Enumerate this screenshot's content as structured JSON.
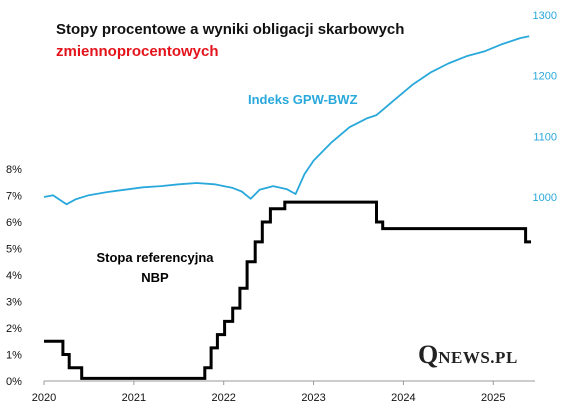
{
  "title_line1": "Stopy procentowe a wyniki obligacji skarbowych",
  "title_line2": "zmiennoprocentowych",
  "title_line2_color": "#e3141b",
  "logo": {
    "q": "Q",
    "rest": "NEWS.PL"
  },
  "chart_data": {
    "type": "line",
    "xlim": [
      2020,
      2025.42
    ],
    "x_ticks": [
      "2020",
      "2021",
      "2022",
      "2023",
      "2024",
      "2025"
    ],
    "y_left": {
      "ticks": [
        "0%",
        "1%",
        "2%",
        "3%",
        "4%",
        "5%",
        "6%",
        "7%",
        "8%"
      ],
      "ylim": [
        0,
        8
      ]
    },
    "y_right": {
      "ticks": [
        "1000",
        "1100",
        "1200",
        "1300"
      ],
      "ylim": [
        0,
        1300
      ],
      "visible_from": 1000,
      "color": "#29a8db"
    },
    "grid": false,
    "series": [
      {
        "name": "Indeks GPW-BWZ",
        "axis": "right",
        "color": "#29a8db",
        "x": [
          2020.0,
          2020.1,
          2020.15,
          2020.25,
          2020.35,
          2020.5,
          2020.7,
          2020.9,
          2021.1,
          2021.3,
          2021.5,
          2021.7,
          2021.9,
          2022.0,
          2022.1,
          2022.2,
          2022.3,
          2022.4,
          2022.55,
          2022.7,
          2022.8,
          2022.9,
          2023.0,
          2023.2,
          2023.4,
          2023.6,
          2023.7,
          2023.9,
          2024.1,
          2024.3,
          2024.5,
          2024.7,
          2024.9,
          2025.1,
          2025.3,
          2025.4
        ],
        "values": [
          1000,
          1003,
          998,
          988,
          996,
          1003,
          1008,
          1012,
          1016,
          1018,
          1021,
          1023,
          1021,
          1018,
          1015,
          1009,
          997,
          1012,
          1018,
          1013,
          1005,
          1038,
          1060,
          1090,
          1115,
          1130,
          1135,
          1160,
          1185,
          1205,
          1220,
          1232,
          1240,
          1252,
          1262,
          1265
        ]
      },
      {
        "name": "Stopa referencyjna NBP",
        "axis": "left",
        "color": "#000000",
        "step": true,
        "x": [
          2020.0,
          2020.21,
          2020.28,
          2020.42,
          2021.79,
          2021.86,
          2021.93,
          2022.01,
          2022.1,
          2022.18,
          2022.26,
          2022.35,
          2022.43,
          2022.52,
          2022.68,
          2023.7,
          2023.77,
          2025.36,
          2025.42
        ],
        "values": [
          1.5,
          1.0,
          0.5,
          0.1,
          0.5,
          1.25,
          1.75,
          2.25,
          2.75,
          3.5,
          4.5,
          5.25,
          6.0,
          6.5,
          6.75,
          6.0,
          5.75,
          5.25,
          5.25
        ]
      }
    ],
    "annotations": [
      {
        "series": "Indeks GPW-BWZ",
        "lines": [
          "Indeks GPW-BWZ"
        ]
      },
      {
        "series": "Stopa referencyjna NBP",
        "lines": [
          "Stopa referencyjna",
          "NBP"
        ]
      }
    ]
  }
}
